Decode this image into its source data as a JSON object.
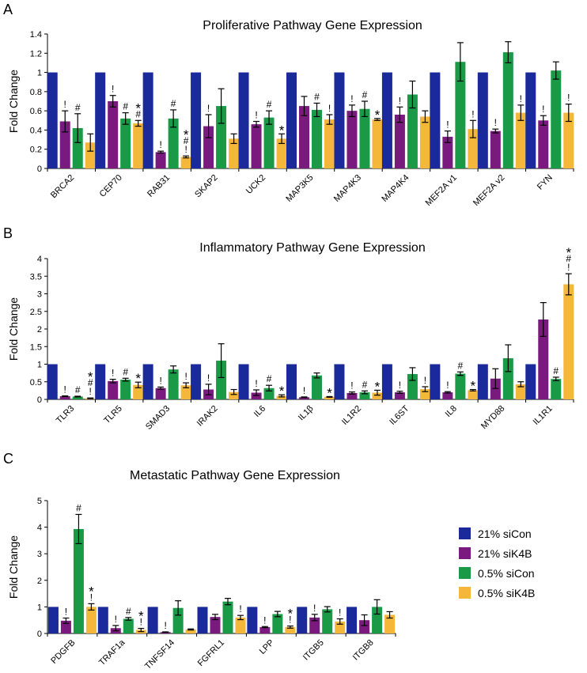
{
  "colors": {
    "21% siCon": "#1a2a9a",
    "21% siK4B": "#7a1a7e",
    "0.5% siCon": "#1a9a46",
    "0.5% siK4B": "#f5b73a"
  },
  "legend": {
    "placement": "right",
    "entries": [
      "21% siCon",
      "21% siK4B",
      "0.5% siCon",
      "0.5% siK4B"
    ]
  },
  "chart_data": [
    {
      "panel": "A",
      "type": "bar",
      "title": "Proliferative Pathway Gene Expression",
      "ylabel": "Fold Change",
      "xlabel": "",
      "ylim": [
        0,
        1.4
      ],
      "ticks": [
        0,
        0.2,
        0.4,
        0.6,
        0.8,
        1,
        1.2,
        1.4
      ],
      "tick_labels": [
        "0",
        "0.2",
        "0.4",
        "0.6",
        "0.8",
        "1",
        "1.2",
        "1.4"
      ],
      "categories": [
        "BRCA2",
        "CEP70",
        "RAB31",
        "SKAP2",
        "UCK2",
        "MAP3K5",
        "MAP4K3",
        "MAP4K4",
        "MEF2A v1",
        "MEF2A v2",
        "FYN"
      ],
      "series": [
        {
          "name": "21% siCon",
          "values": [
            1,
            1,
            1,
            1,
            1,
            1,
            1,
            1,
            1,
            1,
            1
          ],
          "errors": [
            0,
            0,
            0,
            0,
            0,
            0,
            0,
            0,
            0,
            0,
            0
          ]
        },
        {
          "name": "21% siK4B",
          "values": [
            0.49,
            0.7,
            0.17,
            0.44,
            0.46,
            0.65,
            0.6,
            0.56,
            0.33,
            0.39,
            0.5
          ],
          "errors": [
            0.11,
            0.06,
            0.01,
            0.12,
            0.03,
            0.1,
            0.06,
            0.08,
            0.06,
            0.02,
            0.05
          ]
        },
        {
          "name": "0.5% siCon",
          "values": [
            0.42,
            0.52,
            0.52,
            0.65,
            0.53,
            0.61,
            0.62,
            0.77,
            1.11,
            1.21,
            1.02
          ],
          "errors": [
            0.15,
            0.06,
            0.09,
            0.18,
            0.07,
            0.07,
            0.08,
            0.14,
            0.2,
            0.11,
            0.09
          ]
        },
        {
          "name": "0.5% siK4B",
          "values": [
            0.27,
            0.47,
            0.12,
            0.31,
            0.31,
            0.51,
            0.51,
            0.54,
            0.41,
            0.58,
            0.58
          ],
          "errors": [
            0.09,
            0.03,
            0.01,
            0.05,
            0.05,
            0.05,
            0.01,
            0.06,
            0.09,
            0.08,
            0.09
          ]
        }
      ],
      "annotations": [
        {
          "category": "BRCA2",
          "series": "21% siK4B",
          "marks": [
            "!"
          ]
        },
        {
          "category": "BRCA2",
          "series": "0.5% siCon",
          "marks": [
            "#"
          ]
        },
        {
          "category": "CEP70",
          "series": "21% siK4B",
          "marks": [
            "!"
          ]
        },
        {
          "category": "CEP70",
          "series": "0.5% siCon",
          "marks": [
            "#"
          ]
        },
        {
          "category": "CEP70",
          "series": "0.5% siK4B",
          "marks": [
            "#",
            "*"
          ]
        },
        {
          "category": "RAB31",
          "series": "21% siK4B",
          "marks": [
            "!"
          ]
        },
        {
          "category": "RAB31",
          "series": "0.5% siCon",
          "marks": [
            "#"
          ]
        },
        {
          "category": "RAB31",
          "series": "0.5% siK4B",
          "marks": [
            "!",
            "#",
            "*"
          ]
        },
        {
          "category": "SKAP2",
          "series": "21% siK4B",
          "marks": [
            "!"
          ]
        },
        {
          "category": "UCK2",
          "series": "21% siK4B",
          "marks": [
            "!"
          ]
        },
        {
          "category": "UCK2",
          "series": "0.5% siCon",
          "marks": [
            "#"
          ]
        },
        {
          "category": "UCK2",
          "series": "0.5% siK4B",
          "marks": [
            "*"
          ]
        },
        {
          "category": "MAP3K5",
          "series": "0.5% siCon",
          "marks": [
            "#"
          ]
        },
        {
          "category": "MAP3K5",
          "series": "0.5% siK4B",
          "marks": [
            "!"
          ]
        },
        {
          "category": "MAP4K3",
          "series": "21% siK4B",
          "marks": [
            "!"
          ]
        },
        {
          "category": "MAP4K3",
          "series": "0.5% siCon",
          "marks": [
            "#"
          ]
        },
        {
          "category": "MAP4K3",
          "series": "0.5% siK4B",
          "marks": [
            "*"
          ]
        },
        {
          "category": "MAP4K4",
          "series": "21% siK4B",
          "marks": [
            "!"
          ]
        },
        {
          "category": "MEF2A v1",
          "series": "21% siK4B",
          "marks": [
            "!"
          ]
        },
        {
          "category": "MEF2A v1",
          "series": "0.5% siK4B",
          "marks": [
            "!"
          ]
        },
        {
          "category": "MEF2A v2",
          "series": "21% siK4B",
          "marks": [
            "!"
          ]
        },
        {
          "category": "MEF2A v2",
          "series": "0.5% siK4B",
          "marks": [
            "!"
          ]
        },
        {
          "category": "FYN",
          "series": "21% siK4B",
          "marks": [
            "!"
          ]
        },
        {
          "category": "FYN",
          "series": "0.5% siK4B",
          "marks": [
            "!"
          ]
        }
      ]
    },
    {
      "panel": "B",
      "type": "bar",
      "title": "Inflammatory Pathway Gene Expression",
      "ylabel": "Fold Change",
      "xlabel": "",
      "ylim": [
        0,
        4
      ],
      "ticks": [
        0,
        0.5,
        1,
        1.5,
        2,
        2.5,
        3,
        3.5,
        4
      ],
      "tick_labels": [
        "0",
        "0.5",
        "1",
        "1.5",
        "2",
        "2.5",
        "3",
        "3.5",
        "4"
      ],
      "categories": [
        "TLR3",
        "TLR5",
        "SMAD3",
        "IRAK2",
        "IL6",
        "IL1β",
        "IL1R2",
        "IL6ST",
        "IL8",
        "MYD88",
        "IL1R1"
      ],
      "series": [
        {
          "name": "21% siCon",
          "values": [
            1,
            1,
            1,
            1,
            1,
            1,
            1,
            1,
            1,
            1,
            1
          ],
          "errors": [
            0,
            0,
            0,
            0,
            0,
            0,
            0,
            0,
            0,
            0,
            0
          ]
        },
        {
          "name": "21% siK4B",
          "values": [
            0.09,
            0.52,
            0.32,
            0.28,
            0.19,
            0.06,
            0.18,
            0.2,
            0.2,
            0.59,
            2.27
          ],
          "errors": [
            0.01,
            0.05,
            0.03,
            0.15,
            0.08,
            0.01,
            0.03,
            0.03,
            0.02,
            0.28,
            0.48
          ]
        },
        {
          "name": "0.5% siCon",
          "values": [
            0.08,
            0.56,
            0.85,
            1.1,
            0.32,
            0.68,
            0.2,
            0.72,
            0.73,
            1.17,
            0.58
          ],
          "errors": [
            0.01,
            0.04,
            0.1,
            0.48,
            0.08,
            0.07,
            0.04,
            0.18,
            0.05,
            0.38,
            0.05
          ]
        },
        {
          "name": "0.5% siK4B",
          "values": [
            0.03,
            0.41,
            0.4,
            0.21,
            0.1,
            0.07,
            0.19,
            0.29,
            0.26,
            0.43,
            3.27
          ],
          "errors": [
            0.01,
            0.08,
            0.07,
            0.07,
            0.03,
            0.01,
            0.07,
            0.07,
            0.02,
            0.07,
            0.3
          ]
        }
      ],
      "annotations": [
        {
          "category": "TLR3",
          "series": "21% siK4B",
          "marks": [
            "!"
          ]
        },
        {
          "category": "TLR3",
          "series": "0.5% siCon",
          "marks": [
            "#"
          ]
        },
        {
          "category": "TLR3",
          "series": "0.5% siK4B",
          "marks": [
            "!",
            "#",
            "*"
          ]
        },
        {
          "category": "TLR5",
          "series": "21% siK4B",
          "marks": [
            "!"
          ]
        },
        {
          "category": "TLR5",
          "series": "0.5% siCon",
          "marks": [
            "#"
          ]
        },
        {
          "category": "TLR5",
          "series": "0.5% siK4B",
          "marks": [
            "*"
          ]
        },
        {
          "category": "SMAD3",
          "series": "21% siK4B",
          "marks": [
            "!"
          ]
        },
        {
          "category": "SMAD3",
          "series": "0.5% siK4B",
          "marks": [
            "!"
          ]
        },
        {
          "category": "IRAK2",
          "series": "21% siK4B",
          "marks": [
            "!"
          ]
        },
        {
          "category": "IL6",
          "series": "21% siK4B",
          "marks": [
            "!"
          ]
        },
        {
          "category": "IL6",
          "series": "0.5% siCon",
          "marks": [
            "#"
          ]
        },
        {
          "category": "IL6",
          "series": "0.5% siK4B",
          "marks": [
            "*"
          ]
        },
        {
          "category": "IL1β",
          "series": "21% siK4B",
          "marks": [
            "!"
          ]
        },
        {
          "category": "IL1β",
          "series": "0.5% siK4B",
          "marks": [
            "*"
          ]
        },
        {
          "category": "IL1R2",
          "series": "21% siK4B",
          "marks": [
            "!"
          ]
        },
        {
          "category": "IL1R2",
          "series": "0.5% siCon",
          "marks": [
            "#"
          ]
        },
        {
          "category": "IL1R2",
          "series": "0.5% siK4B",
          "marks": [
            "*"
          ]
        },
        {
          "category": "IL6ST",
          "series": "21% siK4B",
          "marks": [
            "!"
          ]
        },
        {
          "category": "IL6ST",
          "series": "0.5% siK4B",
          "marks": [
            "!"
          ]
        },
        {
          "category": "IL8",
          "series": "21% siK4B",
          "marks": [
            "!"
          ]
        },
        {
          "category": "IL8",
          "series": "0.5% siCon",
          "marks": [
            "#"
          ]
        },
        {
          "category": "IL8",
          "series": "0.5% siK4B",
          "marks": [
            "*"
          ]
        },
        {
          "category": "IL1R1",
          "series": "0.5% siCon",
          "marks": [
            "#"
          ]
        },
        {
          "category": "IL1R1",
          "series": "0.5% siK4B",
          "marks": [
            "!",
            "#",
            "*"
          ]
        }
      ]
    },
    {
      "panel": "C",
      "type": "bar",
      "title": "Metastatic Pathway Gene Expression",
      "ylabel": "Fold Change",
      "xlabel": "",
      "ylim": [
        0,
        5
      ],
      "ticks": [
        0,
        1,
        2,
        3,
        4,
        5
      ],
      "tick_labels": [
        "0",
        "1",
        "2",
        "3",
        "4",
        "5"
      ],
      "categories": [
        "PDGFB",
        "TRAF1a",
        "TNFSF14",
        "FGFRL1",
        "LPP",
        "ITGB5",
        "ITGB8"
      ],
      "series": [
        {
          "name": "21% siCon",
          "values": [
            1,
            1,
            1,
            1,
            1,
            1,
            1
          ],
          "errors": [
            0,
            0,
            0,
            0,
            0,
            0,
            0
          ]
        },
        {
          "name": "21% siK4B",
          "values": [
            0.48,
            0.2,
            0.05,
            0.62,
            0.24,
            0.6,
            0.5
          ],
          "errors": [
            0.1,
            0.1,
            0.01,
            0.1,
            0.02,
            0.12,
            0.2
          ]
        },
        {
          "name": "0.5% siCon",
          "values": [
            3.93,
            0.55,
            0.96,
            1.2,
            0.73,
            0.91,
            1.0
          ],
          "errors": [
            0.55,
            0.05,
            0.27,
            0.12,
            0.1,
            0.1,
            0.27
          ]
        },
        {
          "name": "0.5% siK4B",
          "values": [
            1.0,
            0.13,
            0.15,
            0.6,
            0.24,
            0.45,
            0.7
          ],
          "errors": [
            0.12,
            0.06,
            0.02,
            0.08,
            0.04,
            0.1,
            0.12
          ]
        }
      ],
      "annotations": [
        {
          "category": "PDGFB",
          "series": "21% siK4B",
          "marks": [
            "!"
          ]
        },
        {
          "category": "PDGFB",
          "series": "0.5% siCon",
          "marks": [
            "#"
          ]
        },
        {
          "category": "PDGFB",
          "series": "0.5% siK4B",
          "marks": [
            "!",
            "*"
          ]
        },
        {
          "category": "TRAF1a",
          "series": "21% siK4B",
          "marks": [
            "!"
          ]
        },
        {
          "category": "TRAF1a",
          "series": "0.5% siCon",
          "marks": [
            "#"
          ]
        },
        {
          "category": "TRAF1a",
          "series": "0.5% siK4B",
          "marks": [
            "!",
            "*"
          ]
        },
        {
          "category": "TNFSF14",
          "series": "21% siK4B",
          "marks": [
            "!"
          ]
        },
        {
          "category": "FGFRL1",
          "series": "0.5% siK4B",
          "marks": [
            "!"
          ]
        },
        {
          "category": "LPP",
          "series": "21% siK4B",
          "marks": [
            "!"
          ]
        },
        {
          "category": "LPP",
          "series": "0.5% siK4B",
          "marks": [
            "!",
            "*"
          ]
        },
        {
          "category": "ITGB5",
          "series": "21% siK4B",
          "marks": [
            "!"
          ]
        },
        {
          "category": "ITGB5",
          "series": "0.5% siK4B",
          "marks": [
            "!"
          ]
        }
      ]
    }
  ]
}
